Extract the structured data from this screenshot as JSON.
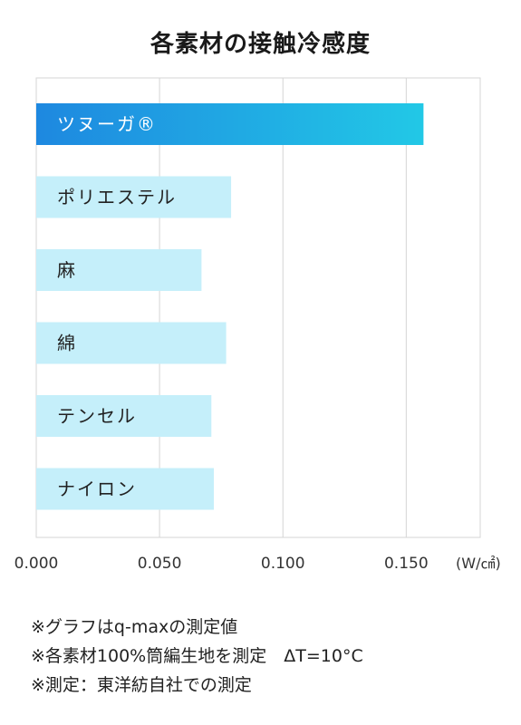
{
  "chart_data": {
    "type": "bar",
    "orientation": "horizontal",
    "title": "各素材の接触冷感度",
    "categories": [
      "ツヌーガ®",
      "ポリエステル",
      "麻",
      "綿",
      "テンセル",
      "ナイロン"
    ],
    "values": [
      0.157,
      0.079,
      0.067,
      0.077,
      0.071,
      0.072
    ],
    "xlim": [
      0,
      0.18
    ],
    "xticks": [
      "0.000",
      "0.050",
      "0.100",
      "0.150"
    ],
    "xtick_values": [
      0,
      0.05,
      0.1,
      0.15
    ],
    "unit_label": "(W/㎠)",
    "grid": true,
    "highlight_index": 0,
    "colors": {
      "highlight_start": "#1e88e0",
      "highlight_end": "#22c8e6",
      "bar": "#c5effa",
      "grid": "#d5d5d5",
      "highlight_text": "#ffffff",
      "bar_text": "#222222"
    }
  },
  "notes": [
    "※グラフはq-maxの測定値",
    "※各素材100%筒編生地を測定　ΔT=10°C",
    "※測定：東洋紡自社での測定"
  ]
}
